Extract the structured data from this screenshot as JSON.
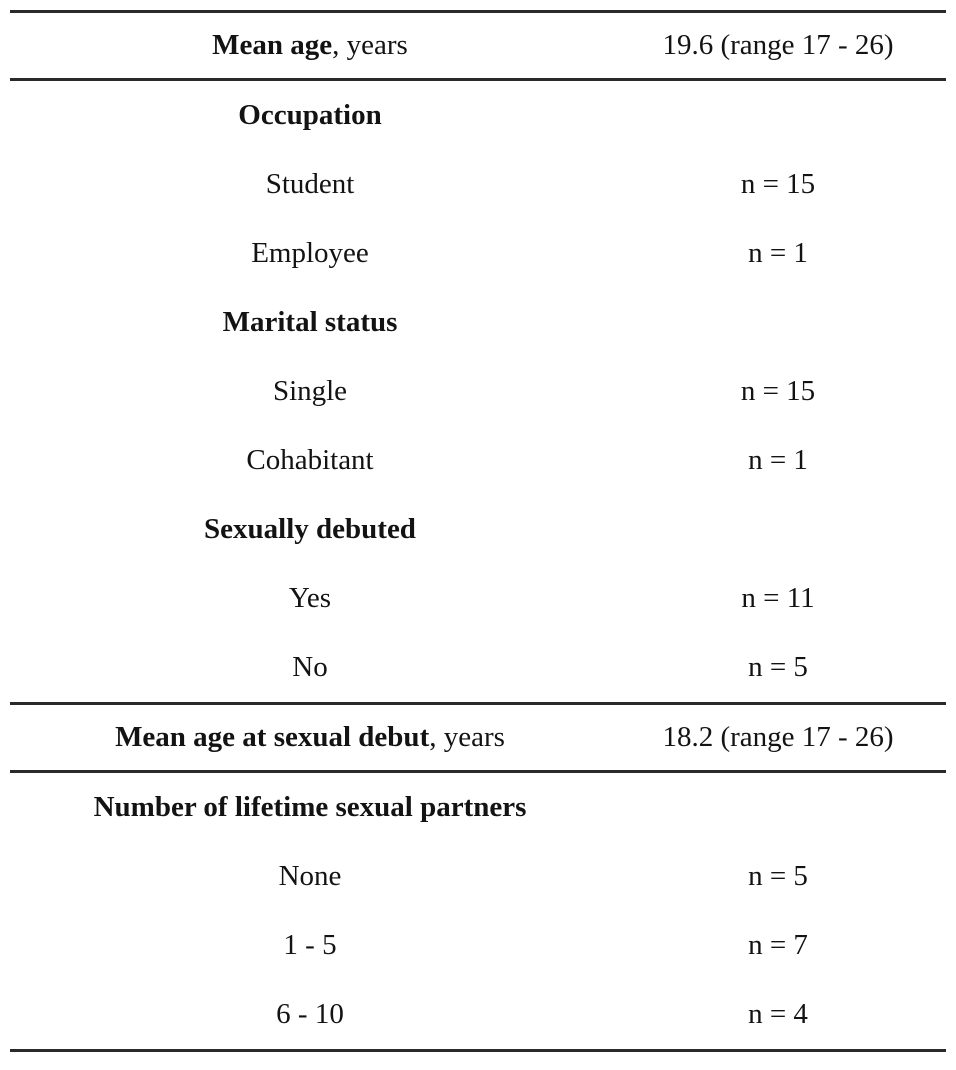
{
  "table": {
    "rows": [
      {
        "label_bold": "Mean age",
        "label_rest": ", years",
        "value": "19.6 (range 17 - 26)"
      },
      {
        "label_bold": "Occupation",
        "label_rest": "",
        "value": ""
      },
      {
        "label_bold": "",
        "label_rest": "Student",
        "value": "n = 15"
      },
      {
        "label_bold": "",
        "label_rest": "Employee",
        "value": "n = 1"
      },
      {
        "label_bold": "Marital status",
        "label_rest": "",
        "value": ""
      },
      {
        "label_bold": "",
        "label_rest": "Single",
        "value": "n = 15"
      },
      {
        "label_bold": "",
        "label_rest": "Cohabitant",
        "value": "n = 1"
      },
      {
        "label_bold": "Sexually debuted",
        "label_rest": "",
        "value": ""
      },
      {
        "label_bold": "",
        "label_rest": "Yes",
        "value": "n = 11"
      },
      {
        "label_bold": "",
        "label_rest": "No",
        "value": "n = 5"
      },
      {
        "label_bold": "Mean age at sexual debut",
        "label_rest": ", years",
        "value": "18.2 (range 17 - 26)"
      },
      {
        "label_bold": "Number of lifetime sexual partners",
        "label_rest": "",
        "value": ""
      },
      {
        "label_bold": "",
        "label_rest": "None",
        "value": "n = 5"
      },
      {
        "label_bold": "",
        "label_rest": "1 - 5",
        "value": "n = 7"
      },
      {
        "label_bold": "",
        "label_rest": "6 - 10",
        "value": "n = 4"
      }
    ],
    "colors": {
      "text": "#131313",
      "rule": "#2a2a2a",
      "background": "#ffffff"
    }
  }
}
